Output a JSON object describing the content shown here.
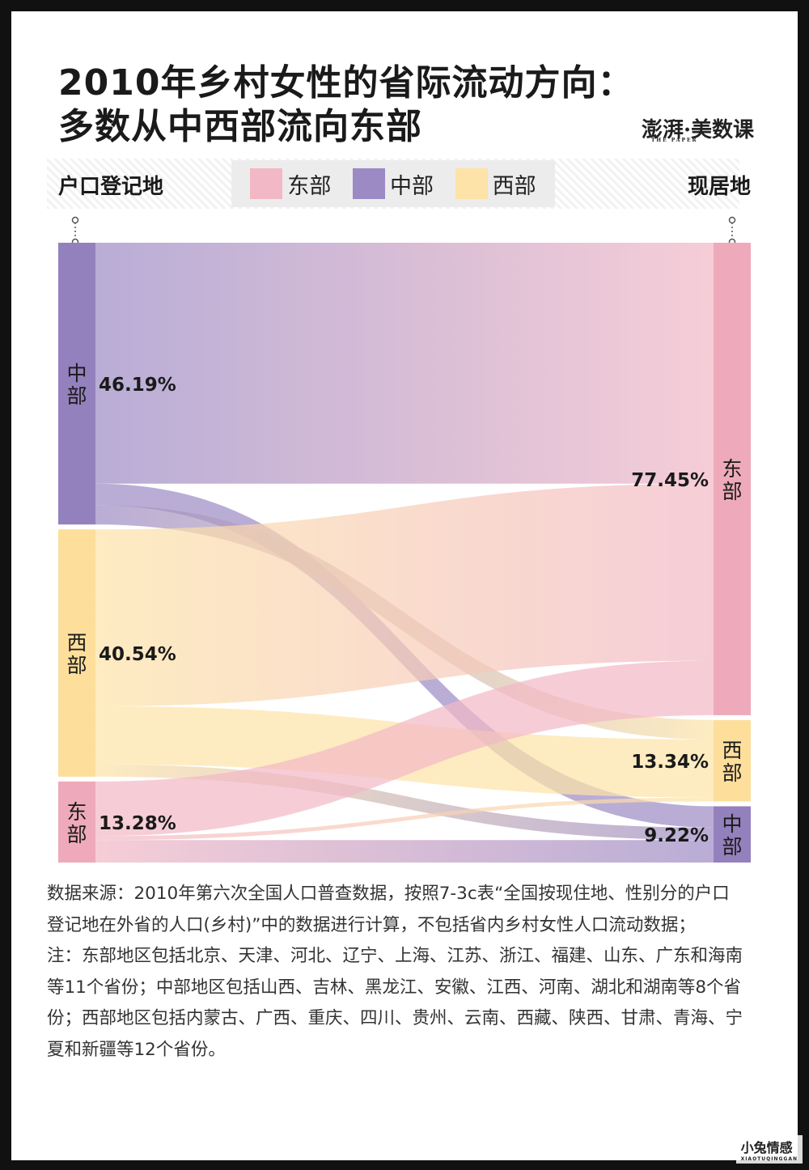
{
  "header": {
    "title_line1": "2010年乡村女性的省际流动方向：",
    "title_line2": "多数从中西部流向东部",
    "logo_text": "澎湃·美数课",
    "logo_sub": "THE PAPER"
  },
  "axis": {
    "left_heading": "户口登记地",
    "right_heading": "现居地"
  },
  "legend": [
    {
      "label": "东部",
      "color": "#f2b8c6"
    },
    {
      "label": "中部",
      "color": "#9b8ac4"
    },
    {
      "label": "西部",
      "color": "#fde3a7"
    }
  ],
  "chart_data": {
    "type": "sankey",
    "title": "2010年乡村女性的省际流动方向：多数从中西部流向东部",
    "left_axis_label": "户口登记地",
    "right_axis_label": "现居地",
    "sources": [
      {
        "name": "中部",
        "value": 46.19,
        "label": "46.19%",
        "color": "#9b8ac4"
      },
      {
        "name": "西部",
        "value": 40.54,
        "label": "40.54%",
        "color": "#fde3a7"
      },
      {
        "name": "东部",
        "value": 13.28,
        "label": "13.28%",
        "color": "#f2b8c6"
      }
    ],
    "targets": [
      {
        "name": "东部",
        "value": 77.45,
        "label": "77.45%",
        "color": "#f2b8c6"
      },
      {
        "name": "西部",
        "value": 13.34,
        "label": "13.34%",
        "color": "#fde3a7"
      },
      {
        "name": "中部",
        "value": 9.22,
        "label": "9.22%",
        "color": "#9b8ac4"
      }
    ],
    "flows": [
      {
        "from": "中部",
        "to": "东部",
        "value": 39.5
      },
      {
        "from": "中部",
        "to": "中部",
        "value": 3.5
      },
      {
        "from": "中部",
        "to": "西部",
        "value": 3.19
      },
      {
        "from": "西部",
        "to": "东部",
        "value": 29.0
      },
      {
        "from": "西部",
        "to": "西部",
        "value": 9.5
      },
      {
        "from": "西部",
        "to": "中部",
        "value": 2.04
      },
      {
        "from": "东部",
        "to": "东部",
        "value": 8.95
      },
      {
        "from": "东部",
        "to": "西部",
        "value": 0.65
      },
      {
        "from": "东部",
        "to": "中部",
        "value": 3.68
      }
    ]
  },
  "footer": {
    "source_note": "数据来源：2010年第六次全国人口普查数据，按照7-3c表“全国按现住地、性别分的户口登记地在外省的人口(乡村)”中的数据进行计算，不包括省内乡村女性人口流动数据；",
    "region_note": "注：东部地区包括北京、天津、河北、辽宁、上海、江苏、浙江、福建、山东、广东和海南等11个省份；中部地区包括山西、吉林、黑龙江、安徽、江西、河南、湖北和湖南等8个省份；西部地区包括内蒙古、广西、重庆、四川、贵州、云南、西藏、陕西、甘肃、青海、宁夏和新疆等12个省份。",
    "watermark": "小兔情感",
    "watermark_sub": "XIAOTUQINGGAN"
  }
}
